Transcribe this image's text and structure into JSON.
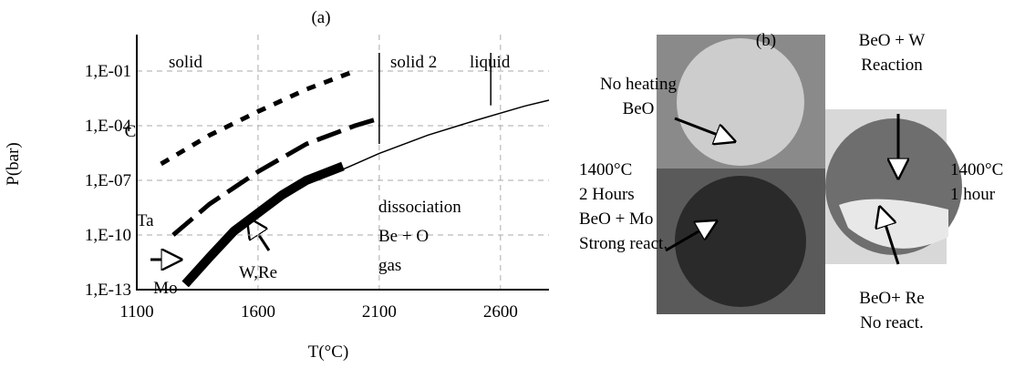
{
  "chart_data": {
    "type": "line",
    "title": "(a)",
    "xlabel": "T(°C)",
    "ylabel": "P(bar)",
    "log_y": true,
    "grid": true,
    "xlim": [
      1100,
      2800
    ],
    "xticks": [
      1100,
      1600,
      2100,
      2600
    ],
    "ylim": [
      1e-13,
      10
    ],
    "yticks": [
      {
        "value": 1e-13,
        "label": "1,E-13"
      },
      {
        "value": 1e-10,
        "label": "1,E-10"
      },
      {
        "value": 1e-07,
        "label": "1,E-07"
      },
      {
        "value": 0.0001,
        "label": "1,E-04"
      },
      {
        "value": 0.1,
        "label": "1,E-01"
      }
    ],
    "series": [
      {
        "name": "C",
        "color": "#000000",
        "style": "dotted",
        "x": [
          1200,
          1400,
          1600,
          1800,
          2000
        ],
        "values": [
          8e-07,
          3e-05,
          0.0006,
          0.01,
          0.1
        ]
      },
      {
        "name": "Ta",
        "color": "#000000",
        "style": "dashed",
        "x": [
          1250,
          1400,
          1600,
          1800,
          2000,
          2100
        ],
        "values": [
          1e-10,
          5e-09,
          3e-07,
          1e-05,
          0.0001,
          0.00025
        ]
      },
      {
        "name": "Mo",
        "color": "#000000",
        "style": "thick",
        "x": [
          1300,
          1400,
          1500,
          1600,
          1700,
          1800,
          1950
        ],
        "values": [
          2e-13,
          6e-12,
          1.6e-10,
          1.6e-09,
          1.6e-08,
          1e-07,
          6e-07
        ]
      },
      {
        "color": "#000000",
        "style": "solid",
        "x": [
          1950,
          2100,
          2300,
          2500,
          2700,
          2800
        ],
        "values": [
          4e-07,
          3e-06,
          3e-05,
          0.0002,
          0.0012,
          0.0025
        ]
      }
    ],
    "phase_boundaries": [
      {
        "x": 2100,
        "top": 1,
        "bottom": 1e-05
      },
      {
        "x": 2560,
        "top": 1,
        "bottom": 0.0013
      }
    ],
    "annotations": [
      "solid",
      "solid 2",
      "liquid",
      "dissociation",
      "Be + O",
      "gas",
      "W,Re"
    ]
  },
  "panel_b": {
    "label": "(b)",
    "notes": [
      [
        "No heating",
        "BeO"
      ],
      [
        "BeO + W",
        "Reaction"
      ],
      [
        "1400°C",
        "2 Hours",
        "BeO + Mo",
        "Strong react."
      ],
      [
        "1400°C",
        "1 hour"
      ],
      [
        "BeO+ Re",
        "No react."
      ]
    ]
  }
}
